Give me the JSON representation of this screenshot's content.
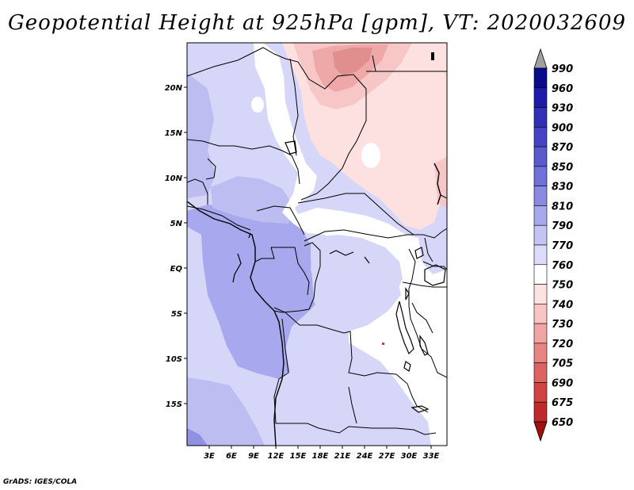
{
  "title": "Geopotential Height at 925hPa [gpm], VT: 2020032609",
  "credit": "GrADS: IGES/COLA",
  "lat_labels": [
    "20N",
    "15N",
    "10N",
    "5N",
    "EQ",
    "5S",
    "10S",
    "15S"
  ],
  "lon_labels": [
    "3E",
    "6E",
    "9E",
    "12E",
    "15E",
    "18E",
    "21E",
    "24E",
    "27E",
    "30E",
    "33E"
  ],
  "colorbar": {
    "levels": [
      "990",
      "960",
      "930",
      "900",
      "870",
      "850",
      "830",
      "810",
      "790",
      "770",
      "760",
      "750",
      "740",
      "730",
      "720",
      "705",
      "690",
      "675",
      "650"
    ],
    "colors": [
      "#0a0a8c",
      "#1c1ca8",
      "#3030b8",
      "#4444c4",
      "#5a5ad0",
      "#7070da",
      "#8a8ae2",
      "#a8a8ec",
      "#c4c4f4",
      "#dcdcfa",
      "#ffffff",
      "#fde2e2",
      "#f9c4c4",
      "#f2a4a4",
      "#e98484",
      "#de6262",
      "#d04444",
      "#bf2a2a",
      "#a81818"
    ],
    "top_arrow_color": "#a0a0a0",
    "bottom_arrow_color": "#a01010"
  },
  "field_colors": {
    "c790": "#d6d6f8",
    "c810": "#bdbdf2",
    "c830": "#a8a8ee",
    "c850": "#9090e4",
    "c770": "#ffffff",
    "c750": "#fde0e0",
    "c740": "#f7c6c6",
    "c730": "#eea8a8",
    "c720": "#e08e8e"
  }
}
